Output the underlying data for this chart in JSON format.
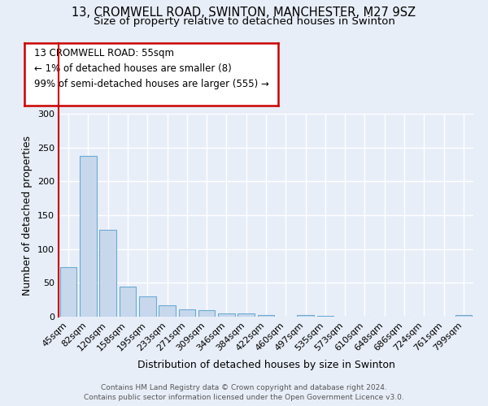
{
  "title1": "13, CROMWELL ROAD, SWINTON, MANCHESTER, M27 9SZ",
  "title2": "Size of property relative to detached houses in Swinton",
  "xlabel": "Distribution of detached houses by size in Swinton",
  "ylabel": "Number of detached properties",
  "bar_labels": [
    "45sqm",
    "82sqm",
    "120sqm",
    "158sqm",
    "195sqm",
    "233sqm",
    "271sqm",
    "309sqm",
    "346sqm",
    "384sqm",
    "422sqm",
    "460sqm",
    "497sqm",
    "535sqm",
    "573sqm",
    "610sqm",
    "648sqm",
    "686sqm",
    "724sqm",
    "761sqm",
    "799sqm"
  ],
  "bar_values": [
    73,
    238,
    128,
    44,
    30,
    17,
    11,
    10,
    5,
    5,
    3,
    0,
    2,
    1,
    0,
    0,
    0,
    0,
    0,
    0,
    2
  ],
  "bar_color": "#c8d8ec",
  "bar_edgecolor": "#6aaad4",
  "ylim": [
    0,
    300
  ],
  "yticks": [
    0,
    50,
    100,
    150,
    200,
    250,
    300
  ],
  "annotation_text": "13 CROMWELL ROAD: 55sqm\n← 1% of detached houses are smaller (8)\n99% of semi-detached houses are larger (555) →",
  "annotation_box_facecolor": "#ffffff",
  "annotation_border_color": "#cc0000",
  "footer1": "Contains HM Land Registry data © Crown copyright and database right 2024.",
  "footer2": "Contains public sector information licensed under the Open Government Licence v3.0.",
  "background_color": "#e8eef8",
  "grid_color": "#ffffff",
  "red_line_color": "#cc0000",
  "title1_fontsize": 10.5,
  "title2_fontsize": 9.5,
  "ylabel_fontsize": 9,
  "xlabel_fontsize": 9,
  "tick_fontsize": 8,
  "annot_fontsize": 8.5,
  "footer_fontsize": 6.5
}
